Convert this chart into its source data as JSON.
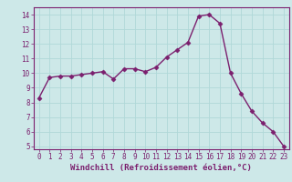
{
  "x": [
    0,
    1,
    2,
    3,
    4,
    5,
    6,
    7,
    8,
    9,
    10,
    11,
    12,
    13,
    14,
    15,
    16,
    17,
    18,
    19,
    20,
    21,
    22,
    23
  ],
  "y": [
    8.3,
    9.7,
    9.8,
    9.8,
    9.9,
    10.0,
    10.1,
    9.6,
    10.3,
    10.3,
    10.1,
    10.4,
    11.1,
    11.6,
    12.1,
    13.9,
    14.0,
    13.4,
    10.0,
    8.6,
    7.4,
    6.6,
    6.0,
    5.0
  ],
  "line_color": "#7b1f6e",
  "marker": "D",
  "markersize": 2.5,
  "linewidth": 1.0,
  "xlabel": "Windchill (Refroidissement éolien,°C)",
  "xlim": [
    -0.5,
    23.5
  ],
  "ylim": [
    4.8,
    14.5
  ],
  "yticks": [
    5,
    6,
    7,
    8,
    9,
    10,
    11,
    12,
    13,
    14
  ],
  "xticks": [
    0,
    1,
    2,
    3,
    4,
    5,
    6,
    7,
    8,
    9,
    10,
    11,
    12,
    13,
    14,
    15,
    16,
    17,
    18,
    19,
    20,
    21,
    22,
    23
  ],
  "bg_color": "#cde8e8",
  "grid_color": "#b0d8d8",
  "tick_color": "#7b1f6e",
  "label_color": "#7b1f6e",
  "spine_color": "#7b1f6e",
  "tick_fontsize": 5.5,
  "xlabel_fontsize": 6.5
}
